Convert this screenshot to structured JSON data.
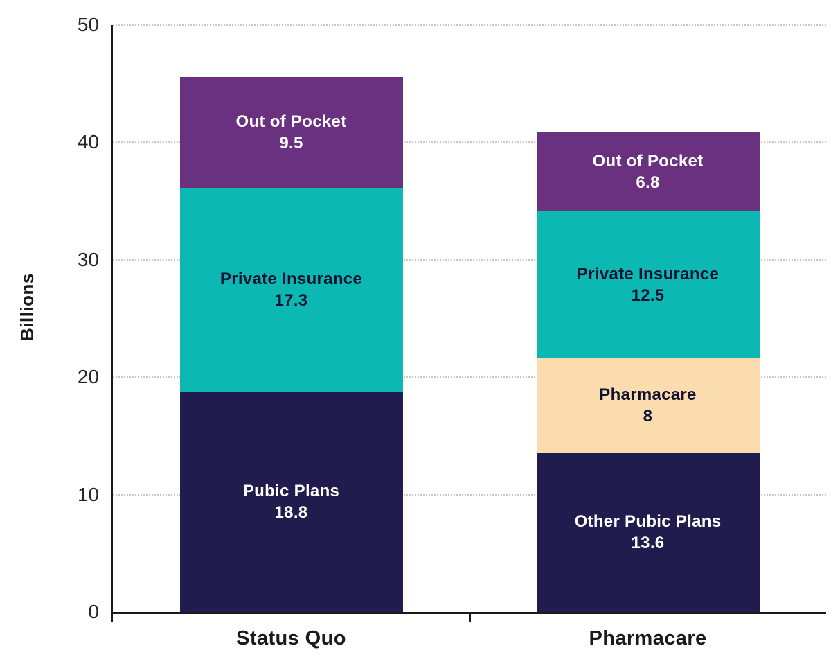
{
  "chart_data": {
    "type": "bar",
    "variant": "stacked",
    "title": "",
    "xlabel": "",
    "ylabel": "Billions",
    "ylim": [
      0,
      50
    ],
    "yticks": [
      0,
      10,
      20,
      30,
      40,
      50
    ],
    "grid": "dotted horizontal gridlines",
    "legend_position": "none (labels drawn inside segments)",
    "categories": [
      "Status Quo",
      "Pharmacare"
    ],
    "palette": {
      "navy": "#211c4e",
      "teal": "#0bb8b2",
      "purple": "#6a3181",
      "peach": "#fbdcae",
      "axis": "#1a1a1a",
      "gridline": "#c9c9c9",
      "text_dark": "#101031",
      "text_light": "#ffffff"
    },
    "bars": [
      {
        "category": "Status Quo",
        "total": 45.6,
        "segments": [
          {
            "label": "Pubic Plans",
            "value": 18.8,
            "value_label": "18.8",
            "color": "#211c4e",
            "text_color": "#ffffff"
          },
          {
            "label": "Private Insurance",
            "value": 17.3,
            "value_label": "17.3",
            "color": "#0bb8b2",
            "text_color": "#101031"
          },
          {
            "label": "Out of Pocket",
            "value": 9.5,
            "value_label": "9.5",
            "color": "#6a3181",
            "text_color": "#ffffff"
          }
        ]
      },
      {
        "category": "Pharmacare",
        "total": 40.9,
        "segments": [
          {
            "label": "Other Pubic Plans",
            "value": 13.6,
            "value_label": "13.6",
            "color": "#211c4e",
            "text_color": "#ffffff"
          },
          {
            "label": "Pharmacare",
            "value": 8,
            "value_label": "8",
            "color": "#fbdcae",
            "text_color": "#101031"
          },
          {
            "label": "Private Insurance",
            "value": 12.5,
            "value_label": "12.5",
            "color": "#0bb8b2",
            "text_color": "#101031"
          },
          {
            "label": "Out of Pocket",
            "value": 6.8,
            "value_label": "6.8",
            "color": "#6a3181",
            "text_color": "#ffffff"
          }
        ]
      }
    ]
  }
}
